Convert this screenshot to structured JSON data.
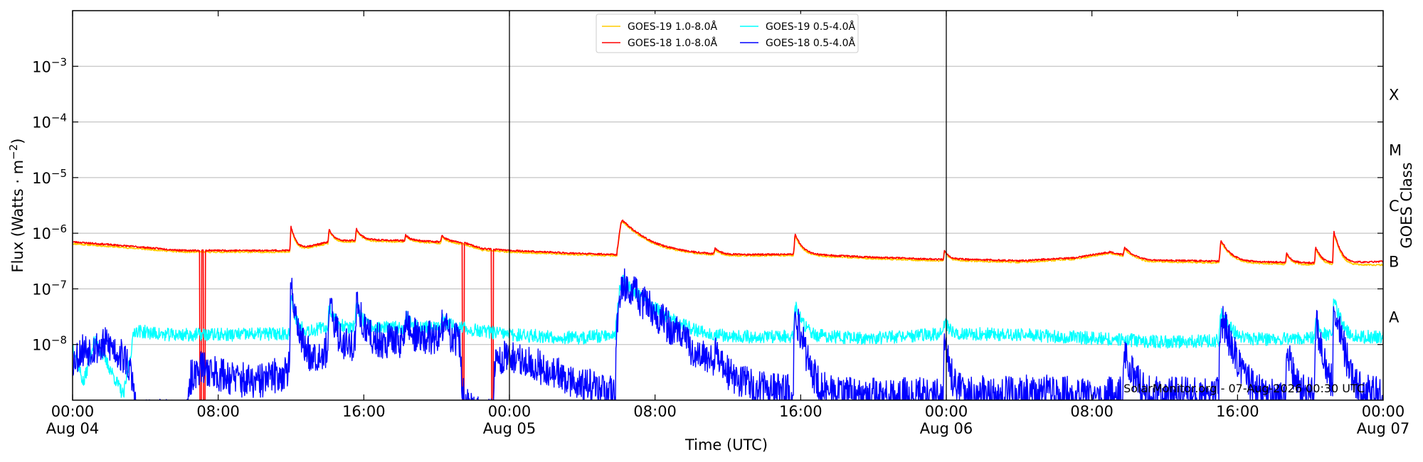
{
  "chart_data": {
    "type": "line",
    "title": "",
    "xlabel": "Time (UTC)",
    "ylabel_main": "Flux (Watts · m",
    "ylabel_sup": "−2",
    "ylabel_close": ")",
    "y2label": "GOES Class",
    "yscale": "log",
    "ylim": [
      1e-09,
      0.01
    ],
    "xlim": [
      0,
      72
    ],
    "x_units": "hours since 00:00 Aug 04 (UTC)",
    "grid": "horizontal at decades",
    "legend_position": "top-center",
    "credit": "SolarMonitor.org - 07-Aug-2026 00:30 UTC",
    "y_ticks": [
      {
        "value": 0.001,
        "base": "10",
        "exp": "−3"
      },
      {
        "value": 0.0001,
        "base": "10",
        "exp": "−4"
      },
      {
        "value": 1e-05,
        "base": "10",
        "exp": "−5"
      },
      {
        "value": 1e-06,
        "base": "10",
        "exp": "−6"
      },
      {
        "value": 1e-07,
        "base": "10",
        "exp": "−7"
      },
      {
        "value": 1e-08,
        "base": "10",
        "exp": "−8"
      }
    ],
    "x_ticks": [
      {
        "hour": 0,
        "time": "00:00",
        "date": "Aug 04"
      },
      {
        "hour": 8,
        "time": "08:00",
        "date": ""
      },
      {
        "hour": 16,
        "time": "16:00",
        "date": ""
      },
      {
        "hour": 24,
        "time": "00:00",
        "date": "Aug 05"
      },
      {
        "hour": 32,
        "time": "08:00",
        "date": ""
      },
      {
        "hour": 40,
        "time": "16:00",
        "date": ""
      },
      {
        "hour": 48,
        "time": "00:00",
        "date": "Aug 06"
      },
      {
        "hour": 56,
        "time": "08:00",
        "date": ""
      },
      {
        "hour": 64,
        "time": "16:00",
        "date": ""
      },
      {
        "hour": 72,
        "time": "00:00",
        "date": "Aug 07"
      }
    ],
    "day_boundaries": [
      24,
      48
    ],
    "goes_classes": [
      {
        "label": "A",
        "flux": 1e-08
      },
      {
        "label": "B",
        "flux": 1e-07
      },
      {
        "label": "C",
        "flux": 1e-06
      },
      {
        "label": "M",
        "flux": 1e-05
      },
      {
        "label": "X",
        "flux": 0.0001
      }
    ],
    "series": [
      {
        "name": "GOES-19 1.0-8.0Å",
        "color": "#ffcc00",
        "noise": 0.015,
        "seed": 11,
        "baseline": [
          [
            0,
            6.5e-07
          ],
          [
            3,
            5.5e-07
          ],
          [
            6,
            4.6e-07
          ],
          [
            9,
            4.6e-07
          ],
          [
            12,
            4.6e-07
          ],
          [
            14,
            6.5e-07
          ],
          [
            16,
            7.2e-07
          ],
          [
            19,
            6.9e-07
          ],
          [
            21.5,
            6.3e-07
          ],
          [
            22.5,
            5e-07
          ],
          [
            24,
            4.6e-07
          ],
          [
            28,
            4.1e-07
          ],
          [
            30.5,
            3.9e-07
          ],
          [
            33,
            4.2e-07
          ],
          [
            36,
            3.9e-07
          ],
          [
            40,
            4e-07
          ],
          [
            44,
            3.5e-07
          ],
          [
            47.5,
            3.2e-07
          ],
          [
            49,
            3.2e-07
          ],
          [
            52,
            3e-07
          ],
          [
            55,
            3.4e-07
          ],
          [
            57,
            4.4e-07
          ],
          [
            59,
            3.1e-07
          ],
          [
            64,
            2.9e-07
          ],
          [
            69,
            2.7e-07
          ],
          [
            72,
            2.7e-07
          ]
        ],
        "peaks": [
          [
            12,
            1.25e-06,
            0.1
          ],
          [
            14.1,
            1.1e-06,
            0.12
          ],
          [
            15.6,
            1.15e-06,
            0.12
          ],
          [
            18.3,
            8.8e-07,
            0.12
          ],
          [
            20.3,
            8.5e-07,
            0.15
          ],
          [
            30.2,
            1.62e-06,
            0.5
          ],
          [
            35.3,
            5e-07,
            0.12
          ],
          [
            39.7,
            8.8e-07,
            0.15
          ],
          [
            47.9,
            4.8e-07,
            0.1
          ],
          [
            57.8,
            5.2e-07,
            0.15
          ],
          [
            63.1,
            6.9e-07,
            0.2
          ],
          [
            66.7,
            4.2e-07,
            0.1
          ],
          [
            68.3,
            5.3e-07,
            0.12
          ],
          [
            69.3,
            9.9e-07,
            0.12
          ]
        ],
        "dropouts": []
      },
      {
        "name": "GOES-18 1.0-8.0Å",
        "color": "#ff0000",
        "noise": 0.015,
        "seed": 23,
        "baseline": [
          [
            0,
            7e-07
          ],
          [
            3,
            5.9e-07
          ],
          [
            6,
            4.9e-07
          ],
          [
            9,
            4.9e-07
          ],
          [
            12,
            4.9e-07
          ],
          [
            14,
            6.9e-07
          ],
          [
            16,
            7.6e-07
          ],
          [
            19,
            7.3e-07
          ],
          [
            21.5,
            6.7e-07
          ],
          [
            22.5,
            5.3e-07
          ],
          [
            24,
            4.9e-07
          ],
          [
            28,
            4.3e-07
          ],
          [
            30.5,
            4.1e-07
          ],
          [
            33,
            4.4e-07
          ],
          [
            36,
            4.1e-07
          ],
          [
            40,
            4.2e-07
          ],
          [
            44,
            3.7e-07
          ],
          [
            47.5,
            3.4e-07
          ],
          [
            49,
            3.4e-07
          ],
          [
            52,
            3.2e-07
          ],
          [
            55,
            3.6e-07
          ],
          [
            57,
            4.6e-07
          ],
          [
            59,
            3.3e-07
          ],
          [
            64,
            3.1e-07
          ],
          [
            69,
            2.9e-07
          ],
          [
            72,
            3.1e-07
          ]
        ],
        "peaks": [
          [
            12,
            1.3e-06,
            0.1
          ],
          [
            14.1,
            1.15e-06,
            0.12
          ],
          [
            15.6,
            1.2e-06,
            0.12
          ],
          [
            18.3,
            9.2e-07,
            0.12
          ],
          [
            20.3,
            9e-07,
            0.15
          ],
          [
            30.2,
            1.7e-06,
            0.5
          ],
          [
            35.3,
            5.3e-07,
            0.12
          ],
          [
            39.7,
            9.3e-07,
            0.15
          ],
          [
            47.9,
            5e-07,
            0.1
          ],
          [
            57.8,
            5.5e-07,
            0.15
          ],
          [
            63.1,
            7.3e-07,
            0.2
          ],
          [
            66.7,
            4.4e-07,
            0.1
          ],
          [
            68.3,
            5.6e-07,
            0.12
          ],
          [
            69.3,
            1.05e-06,
            0.12
          ]
        ],
        "dropouts": [
          [
            7.0,
            7.1
          ],
          [
            7.2,
            7.3
          ],
          [
            21.4,
            21.5
          ],
          [
            23.0,
            23.1
          ]
        ]
      },
      {
        "name": "GOES-19 0.5-4.0Å",
        "color": "#00ffff",
        "noise": 0.12,
        "seed": 37,
        "baseline": [
          [
            0,
            1e-08
          ],
          [
            0.6,
            2e-09
          ],
          [
            1.2,
            1.2e-08
          ],
          [
            2.0,
            4e-09
          ],
          [
            2.8,
            1.2e-09
          ],
          [
            3.4,
            1.8e-08
          ],
          [
            5,
            1.5e-08
          ],
          [
            9,
            1.5e-08
          ],
          [
            12,
            1.6e-08
          ],
          [
            14,
            2e-08
          ],
          [
            18,
            2e-08
          ],
          [
            21,
            2e-08
          ],
          [
            24,
            1.5e-08
          ],
          [
            28,
            1.3e-08
          ],
          [
            30,
            1.6e-08
          ],
          [
            32,
            1.2e-08
          ],
          [
            36,
            1.3e-08
          ],
          [
            40,
            1.4e-08
          ],
          [
            44,
            1.3e-08
          ],
          [
            48,
            1.6e-08
          ],
          [
            52,
            1.5e-08
          ],
          [
            56,
            1.3e-08
          ],
          [
            60,
            1.1e-08
          ],
          [
            64,
            1.2e-08
          ],
          [
            68,
            1.3e-08
          ],
          [
            72,
            1.4e-08
          ]
        ],
        "peaks": [
          [
            12,
            6.5e-08,
            0.1
          ],
          [
            14.1,
            5e-08,
            0.12
          ],
          [
            15.6,
            5.2e-08,
            0.12
          ],
          [
            18.3,
            3.5e-08,
            0.12
          ],
          [
            20.3,
            3e-08,
            0.15
          ],
          [
            30.2,
            1.4e-07,
            0.6
          ],
          [
            39.7,
            5e-08,
            0.15
          ],
          [
            47.9,
            2.6e-08,
            0.1
          ],
          [
            63.1,
            3.8e-08,
            0.2
          ],
          [
            68.3,
            3.2e-08,
            0.12
          ],
          [
            69.3,
            7e-08,
            0.12
          ]
        ],
        "dropouts": []
      },
      {
        "name": "GOES-18 0.5-4.0Å",
        "color": "#0000ff",
        "noise": 0.32,
        "seed": 53,
        "baseline": [
          [
            0,
            5e-09
          ],
          [
            0.5,
            8e-09
          ],
          [
            2,
            1e-08
          ],
          [
            3.0,
            5e-09
          ],
          [
            3.4,
            1.5e-09
          ],
          [
            3.5,
            5e-10
          ],
          [
            6.3,
            5e-10
          ],
          [
            6.5,
            2.5e-09
          ],
          [
            7,
            4e-09
          ],
          [
            8,
            3e-09
          ],
          [
            10,
            2e-09
          ],
          [
            11.5,
            3e-09
          ],
          [
            12.5,
            5e-09
          ],
          [
            14,
            8e-09
          ],
          [
            16,
            1.1e-08
          ],
          [
            18,
            1.2e-08
          ],
          [
            20,
            1.3e-08
          ],
          [
            21.3,
            1.1e-08
          ],
          [
            21.4,
            5e-10
          ],
          [
            23.1,
            5e-10
          ],
          [
            23.2,
            5e-09
          ],
          [
            24,
            6e-09
          ],
          [
            25,
            5e-09
          ],
          [
            27,
            2.5e-09
          ],
          [
            29,
            1.5e-09
          ],
          [
            30,
            1.2e-09
          ],
          [
            32,
            2e-09
          ],
          [
            34,
            1.3e-09
          ],
          [
            36,
            1.2e-09
          ],
          [
            40,
            1.3e-09
          ],
          [
            44,
            1.2e-09
          ],
          [
            48,
            1.3e-09
          ],
          [
            52,
            1.4e-09
          ],
          [
            56,
            1.3e-09
          ],
          [
            60,
            1.3e-09
          ],
          [
            64,
            1.2e-09
          ],
          [
            68,
            1.3e-09
          ],
          [
            72,
            1.4e-09
          ]
        ],
        "peaks": [
          [
            12,
            1.1e-07,
            0.1
          ],
          [
            14.1,
            5e-08,
            0.12
          ],
          [
            15.6,
            5.5e-08,
            0.12
          ],
          [
            18.3,
            2.8e-08,
            0.12
          ],
          [
            20.3,
            2.5e-08,
            0.15
          ],
          [
            30.2,
            1.35e-07,
            0.6
          ],
          [
            35.3,
            6e-09,
            0.12
          ],
          [
            39.7,
            3.5e-08,
            0.15
          ],
          [
            47.9,
            1e-08,
            0.1
          ],
          [
            57.8,
            8e-09,
            0.15
          ],
          [
            63.1,
            3.2e-08,
            0.2
          ],
          [
            66.7,
            1e-08,
            0.1
          ],
          [
            68.3,
            2.5e-08,
            0.12
          ],
          [
            69.3,
            6e-08,
            0.12
          ]
        ],
        "dropouts": []
      }
    ]
  }
}
